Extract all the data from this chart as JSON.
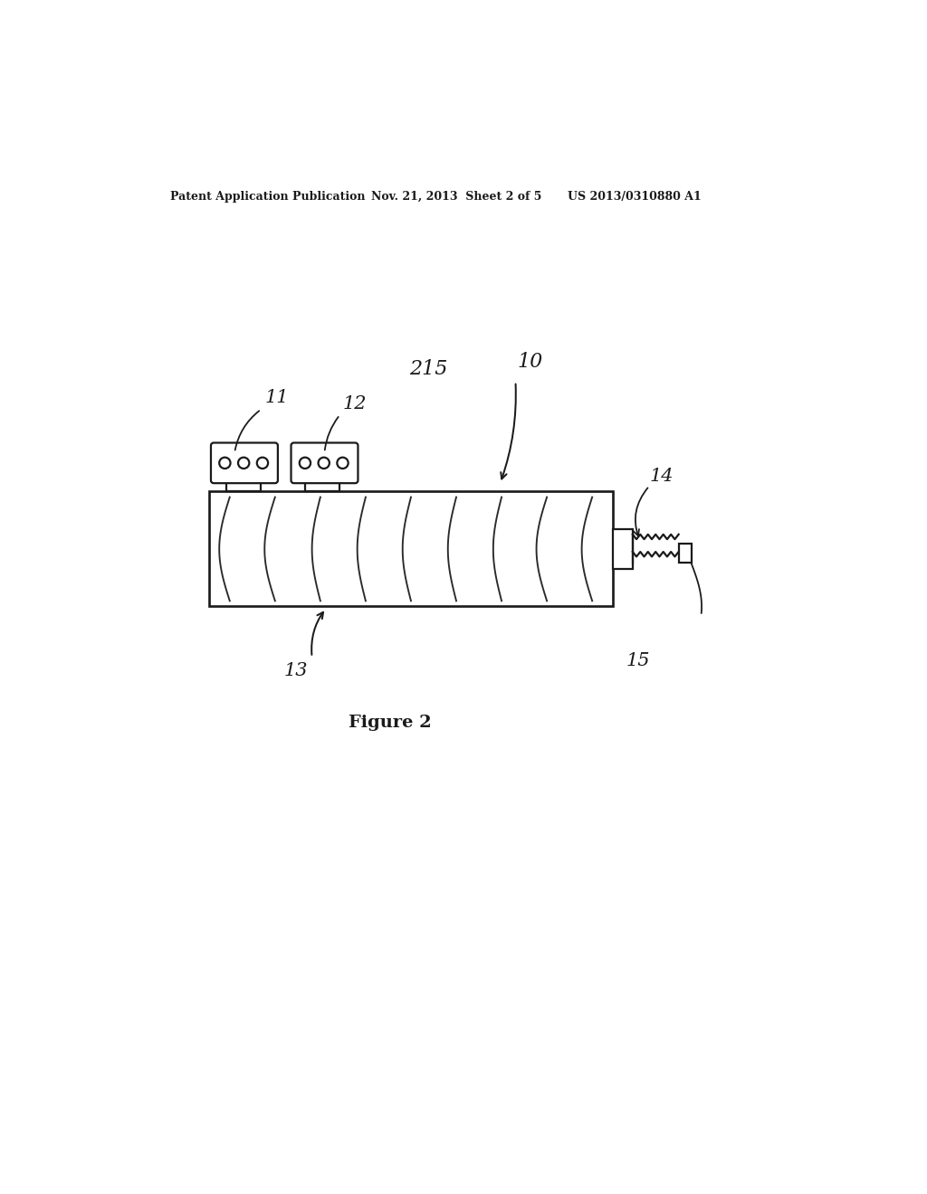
{
  "bg_color": "#ffffff",
  "header_text": "Patent Application Publication",
  "header_date": "Nov. 21, 2013  Sheet 2 of 5",
  "header_patent": "US 2013/0310880 A1",
  "figure_label": "Figure 2",
  "label_11": "11",
  "label_12": "12",
  "label_13": "13",
  "label_14": "14",
  "label_15": "15",
  "label_10": "10",
  "label_215": "215",
  "line_color": "#1a1a1a",
  "line_width": 1.6
}
